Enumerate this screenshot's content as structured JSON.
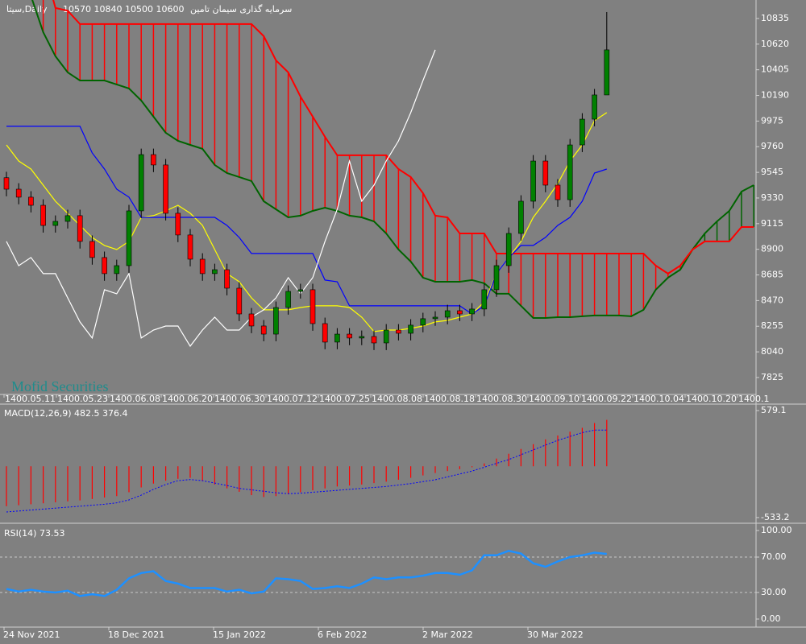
{
  "chart_data": [
    {
      "type": "candlestick",
      "title": "سیتا,Daily",
      "subtitle": "10570 10840 10500 10600",
      "company": "سرمایه گذاری سیمان تامین",
      "watermark": "Mofid Securities",
      "x_labels": [
        "1400.05.11",
        "1400.05.23",
        "1400.06.08",
        "1400.06.20",
        "1400.06.30",
        "1400.07.12",
        "1400.07.25",
        "1400.08.08",
        "1400.08.18",
        "1400.08.30",
        "1400.09.10",
        "1400.09.22",
        "1400.10.04",
        "1400.10.20",
        "1400.1"
      ],
      "ylim": [
        7683,
        10990
      ],
      "yticks": [
        10835,
        10620,
        10405,
        10190,
        9975,
        9760,
        9545,
        9330,
        9115,
        8900,
        8685,
        8470,
        8255,
        8040,
        7825
      ],
      "candles": {
        "up_color": "#008000",
        "down_color": "#ff0000",
        "open": [
          9500,
          9404,
          9337,
          9269,
          9100,
          9134,
          9182,
          8966,
          8831,
          8696,
          8763,
          9222,
          9694,
          9607,
          9202,
          9020,
          8817,
          8696,
          8729,
          8574,
          8358,
          8257,
          8189,
          8412,
          8547,
          8561,
          8277,
          8122,
          8189,
          8156,
          8169,
          8115,
          8223,
          8196,
          8264,
          8318,
          8331,
          8385,
          8358,
          8399,
          8561,
          8763,
          9033,
          9303,
          9640,
          9438,
          9316,
          9775,
          9991,
          10194
        ],
        "high": [
          9550,
          9454,
          9387,
          9319,
          9184,
          9232,
          9232,
          9016,
          8881,
          8813,
          9272,
          9744,
          9744,
          9657,
          9252,
          9070,
          8867,
          8779,
          8779,
          8624,
          8408,
          8307,
          8462,
          8597,
          8611,
          8611,
          8327,
          8239,
          8239,
          8219,
          8219,
          8273,
          8273,
          8314,
          8368,
          8381,
          8435,
          8435,
          8449,
          8611,
          8813,
          9083,
          9353,
          9690,
          9690,
          9488,
          9825,
          10041,
          10244,
          10889
        ],
        "low": [
          9344,
          9277,
          9209,
          9040,
          9040,
          9074,
          8906,
          8771,
          8636,
          8636,
          8703,
          9162,
          9547,
          9142,
          8960,
          8757,
          8636,
          8636,
          8514,
          8298,
          8197,
          8129,
          8129,
          8352,
          8487,
          8217,
          8062,
          8062,
          8096,
          8096,
          8055,
          8055,
          8136,
          8136,
          8204,
          8258,
          8271,
          8298,
          8298,
          8339,
          8501,
          8703,
          8973,
          9243,
          9378,
          9256,
          9256,
          9715,
          9931,
          10350
        ],
        "close": [
          9404,
          9337,
          9269,
          9100,
          9134,
          9182,
          8966,
          8831,
          8696,
          8763,
          9222,
          9694,
          9607,
          9202,
          9020,
          8817,
          8696,
          8729,
          8574,
          8358,
          8257,
          8189,
          8412,
          8547,
          8561,
          8277,
          8122,
          8189,
          8156,
          8169,
          8115,
          8223,
          8196,
          8264,
          8318,
          8331,
          8385,
          8358,
          8399,
          8561,
          8763,
          9033,
          9303,
          9640,
          9438,
          9316,
          9775,
          9991,
          10194,
          10572
        ]
      },
      "lines": [
        {
          "color": "#ffff00",
          "values": [
            9775,
            9640,
            9573,
            9438,
            9303,
            9202,
            9100,
            8999,
            8932,
            8898,
            8966,
            9168,
            9182,
            9222,
            9269,
            9202,
            9100,
            8898,
            8696,
            8628,
            8493,
            8392,
            8392,
            8392,
            8412,
            8426,
            8426,
            8426,
            8412,
            8331,
            8210,
            8223,
            8223,
            8237,
            8257,
            8291,
            8304,
            8331,
            8358,
            8459,
            8696,
            8831,
            8966,
            9168,
            9303,
            9451,
            9640,
            9775,
            9978,
            10046
          ]
        },
        {
          "color": "#0000ff",
          "values": [
            9931,
            9931,
            9931,
            9931,
            9931,
            9931,
            9931,
            9708,
            9573,
            9404,
            9337,
            9168,
            9168,
            9168,
            9168,
            9168,
            9168,
            9168,
            9100,
            8999,
            8865,
            8865,
            8865,
            8865,
            8865,
            8865,
            8642,
            8628,
            8426,
            8426,
            8426,
            8426,
            8426,
            8426,
            8426,
            8426,
            8426,
            8426,
            8358,
            8426,
            8696,
            8831,
            8932,
            8932,
            9000,
            9100,
            9168,
            9303,
            9539,
            9573
          ]
        },
        {
          "color": "#ffffff",
          "values": [
            8966,
            8763,
            8831,
            8696,
            8696,
            8493,
            8291,
            8156,
            8561,
            8527,
            8696,
            8156,
            8223,
            8257,
            8257,
            8088,
            8223,
            8331,
            8223,
            8223,
            8331,
            8392,
            8493,
            8662,
            8527,
            8662,
            8966,
            9235,
            9640,
            9303,
            9438,
            9640,
            9809,
            10046,
            10315,
            10572,
            null,
            null,
            null,
            null,
            null,
            null,
            null,
            null,
            null,
            null,
            null,
            null,
            null,
            null,
            null,
            null,
            null,
            null,
            null,
            null,
            null,
            null,
            null,
            null,
            null,
            null
          ]
        }
      ],
      "cloud": {
        "span_a": {
          "color": "#006400",
          "values": [
            11530,
            11260,
            11024,
            10720,
            10518,
            10383,
            10315,
            10315,
            10315,
            10282,
            10248,
            10147,
            10012,
            9877,
            9809,
            9775,
            9742,
            9607,
            9539,
            9506,
            9472,
            9303,
            9235,
            9168,
            9182,
            9222,
            9249,
            9222,
            9182,
            9168,
            9134,
            9033,
            8898,
            8797,
            8662,
            8628,
            8628,
            8628,
            8642,
            8615,
            8527,
            8527,
            8426,
            8324,
            8324,
            8331,
            8331,
            8338,
            8345,
            8345,
            8345,
            8338,
            8392,
            8561,
            8662,
            8729,
            8898,
            9033,
            9134,
            9222,
            9384,
            9438
          ]
        },
        "span_b": {
          "color": "#ff0000",
          "values": [
            11300,
            11300,
            11300,
            11300,
            10923,
            10900,
            10788,
            10788,
            10788,
            10788,
            10788,
            10788,
            10788,
            10788,
            10788,
            10788,
            10788,
            10788,
            10788,
            10788,
            10788,
            10687,
            10484,
            10383,
            10180,
            10012,
            9843,
            9688,
            9688,
            9688,
            9688,
            9688,
            9573,
            9506,
            9371,
            9182,
            9168,
            9033,
            9033,
            9033,
            8864,
            8864,
            8864,
            8864,
            8864,
            8864,
            8864,
            8864,
            8864,
            8864,
            8864,
            8864,
            8864,
            8763,
            8696,
            8763,
            8898,
            8966,
            8966,
            8966,
            9087,
            9087
          ]
        }
      }
    },
    {
      "type": "macd",
      "title": "MACD(12,26,9) 482.5 376.4",
      "ylim": [
        -584,
        638
      ],
      "yticks": [
        579.1,
        -533.2
      ],
      "histogram": {
        "color": "#ff0000",
        "values": [
          -415,
          -405,
          -395,
          -385,
          -375,
          -365,
          -355,
          -340,
          -325,
          -310,
          -270,
          -220,
          -180,
          -150,
          -130,
          -120,
          -150,
          -190,
          -230,
          -265,
          -300,
          -320,
          -310,
          -290,
          -270,
          -250,
          -230,
          -210,
          -200,
          -190,
          -175,
          -160,
          -140,
          -120,
          -95,
          -70,
          -50,
          -30,
          -10,
          30,
          80,
          130,
          180,
          230,
          280,
          320,
          360,
          400,
          450,
          482.5
        ]
      },
      "signal": {
        "color": "#0000ff",
        "values": [
          -475,
          -465,
          -455,
          -445,
          -435,
          -425,
          -415,
          -405,
          -395,
          -380,
          -350,
          -300,
          -240,
          -190,
          -150,
          -138,
          -150,
          -175,
          -200,
          -230,
          -245,
          -260,
          -275,
          -285,
          -280,
          -270,
          -260,
          -250,
          -240,
          -230,
          -220,
          -210,
          -195,
          -180,
          -160,
          -140,
          -110,
          -80,
          -50,
          -10,
          30,
          70,
          120,
          170,
          220,
          270,
          310,
          350,
          376.4,
          376.4
        ]
      }
    },
    {
      "type": "rsi",
      "title": "RSI(14) 73.53",
      "ylim": [
        -8.2,
        106.4
      ],
      "yticks": [
        {
          "value": 100,
          "label": "100.00"
        },
        {
          "value": 70,
          "label": "70.00"
        },
        {
          "value": 30,
          "label": "30.00"
        },
        {
          "value": 0,
          "label": "0.00"
        }
      ],
      "x_labels": [
        "24 Nov 2021",
        "18 Dec 2021",
        "15 Jan 2022",
        "6 Feb 2022",
        "2 Mar 2022",
        "30 Mar 2022"
      ],
      "series": {
        "color": "#1e90ff",
        "values": [
          34,
          31,
          33,
          31,
          30,
          32,
          26,
          28,
          26,
          33,
          46,
          52,
          54,
          43,
          40,
          35,
          35,
          35,
          31,
          33,
          29,
          31,
          46,
          45,
          43,
          34,
          35,
          37,
          35,
          40,
          47,
          45,
          47,
          47,
          49,
          52,
          52,
          50,
          55,
          72,
          72,
          77,
          74,
          63,
          59,
          65,
          70,
          72,
          75,
          73.53
        ]
      }
    }
  ]
}
